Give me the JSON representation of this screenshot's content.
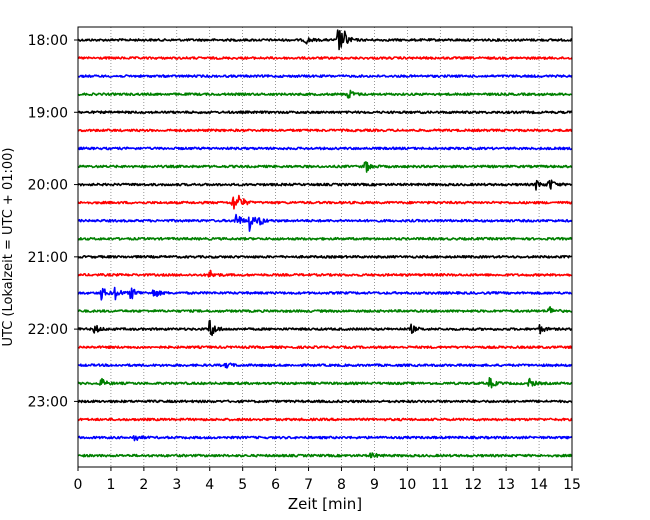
{
  "chart_data": {
    "type": "line",
    "title": "",
    "xlabel": "Zeit  [min]",
    "ylabel": "UTC (Lokalzeit = UTC + 01:00)",
    "xlim": [
      0,
      15
    ],
    "x_ticks": [
      0,
      1,
      2,
      3,
      4,
      5,
      6,
      7,
      8,
      9,
      10,
      11,
      12,
      13,
      14,
      15
    ],
    "y_ticks": [
      "18:00",
      "19:00",
      "20:00",
      "21:00",
      "22:00",
      "23:00"
    ],
    "grid": "vertical dotted",
    "trace_interval_minutes": 15,
    "start_time": "18:00",
    "color_cycle": [
      "#000000",
      "#ff0000",
      "#0000ff",
      "#008000"
    ],
    "traces": [
      {
        "time": "18:00",
        "events": [
          {
            "t": 6.9,
            "amp": 0.25
          },
          {
            "t": 7.9,
            "amp": 1.0
          },
          {
            "t": 8.1,
            "amp": 0.3
          }
        ]
      },
      {
        "time": "18:15",
        "events": []
      },
      {
        "time": "18:30",
        "events": []
      },
      {
        "time": "18:45",
        "events": [
          {
            "t": 8.2,
            "amp": 0.35
          }
        ]
      },
      {
        "time": "19:00",
        "events": []
      },
      {
        "time": "19:15",
        "events": []
      },
      {
        "time": "19:30",
        "events": []
      },
      {
        "time": "19:45",
        "events": [
          {
            "t": 8.7,
            "amp": 0.5
          }
        ]
      },
      {
        "time": "20:00",
        "events": [
          {
            "t": 13.9,
            "amp": 0.3
          },
          {
            "t": 14.3,
            "amp": 0.45
          }
        ]
      },
      {
        "time": "20:15",
        "events": [
          {
            "t": 4.7,
            "amp": 0.55
          },
          {
            "t": 4.9,
            "amp": 0.4
          }
        ]
      },
      {
        "time": "20:30",
        "events": [
          {
            "t": 4.8,
            "amp": 0.5
          },
          {
            "t": 5.2,
            "amp": 0.6
          },
          {
            "t": 5.5,
            "amp": 0.3
          }
        ]
      },
      {
        "time": "20:45",
        "events": []
      },
      {
        "time": "21:00",
        "events": []
      },
      {
        "time": "21:15",
        "events": [
          {
            "t": 4.0,
            "amp": 0.3
          }
        ]
      },
      {
        "time": "21:30",
        "events": [
          {
            "t": 0.7,
            "amp": 0.45
          },
          {
            "t": 1.1,
            "amp": 0.5
          },
          {
            "t": 1.6,
            "amp": 0.45
          },
          {
            "t": 2.3,
            "amp": 0.35
          }
        ]
      },
      {
        "time": "21:45",
        "events": [
          {
            "t": 14.3,
            "amp": 0.3
          }
        ]
      },
      {
        "time": "22:00",
        "events": [
          {
            "t": 0.5,
            "amp": 0.3
          },
          {
            "t": 4.0,
            "amp": 0.75
          },
          {
            "t": 10.1,
            "amp": 0.3
          },
          {
            "t": 14.0,
            "amp": 0.3
          }
        ]
      },
      {
        "time": "22:15",
        "events": []
      },
      {
        "time": "22:30",
        "events": [
          {
            "t": 4.5,
            "amp": 0.2
          }
        ]
      },
      {
        "time": "22:45",
        "events": [
          {
            "t": 0.7,
            "amp": 0.3
          },
          {
            "t": 12.5,
            "amp": 0.35
          },
          {
            "t": 13.7,
            "amp": 0.3
          }
        ]
      },
      {
        "time": "23:00",
        "events": []
      },
      {
        "time": "23:15",
        "events": []
      },
      {
        "time": "23:30",
        "events": [
          {
            "t": 1.7,
            "amp": 0.25
          }
        ]
      },
      {
        "time": "23:45",
        "events": [
          {
            "t": 8.9,
            "amp": 0.2
          }
        ]
      }
    ]
  }
}
